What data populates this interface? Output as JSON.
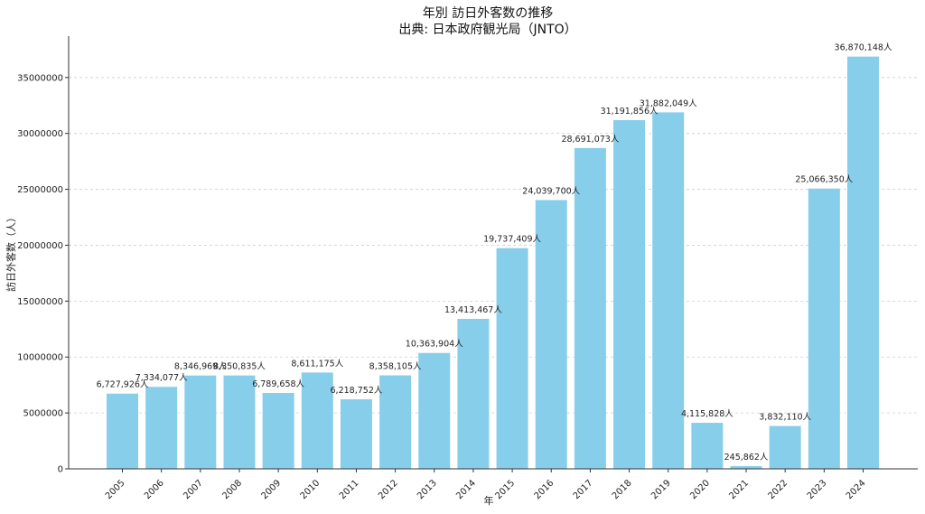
{
  "chart_data": {
    "type": "bar",
    "title": "年別 訪日外客数の推移",
    "subtitle": "出典: 日本政府観光局（JNTO）",
    "xlabel": "年",
    "ylabel": "訪日外客数（人）",
    "categories": [
      "2005",
      "2006",
      "2007",
      "2008",
      "2009",
      "2010",
      "2011",
      "2012",
      "2013",
      "2014",
      "2015",
      "2016",
      "2017",
      "2018",
      "2019",
      "2020",
      "2021",
      "2022",
      "2023",
      "2024"
    ],
    "values": [
      6727926,
      7334077,
      8346969,
      8350835,
      6789658,
      8611175,
      6218752,
      8358105,
      10363904,
      13413467,
      19737409,
      24039700,
      28691073,
      31191856,
      31882049,
      4115828,
      245862,
      3832110,
      25066350,
      36870148
    ],
    "data_labels": [
      "6,727,926人",
      "7,334,077人",
      "8,346,969人",
      "8,350,835人",
      "6,789,658人",
      "8,611,175人",
      "6,218,752人",
      "8,358,105人",
      "10,363,904人",
      "13,413,467人",
      "19,737,409人",
      "24,039,700人",
      "28,691,073人",
      "31,191,856人",
      "31,882,049人",
      "4,115,828人",
      "245,862人",
      "3,832,110人",
      "25,066,350人",
      "36,870,148人"
    ],
    "yticks": [
      "0",
      "5000000",
      "10000000",
      "15000000",
      "20000000",
      "25000000",
      "30000000",
      "35000000"
    ],
    "ylim": [
      0,
      38700000
    ],
    "grid": "horizontal",
    "bar_color": "#87CEEB"
  }
}
